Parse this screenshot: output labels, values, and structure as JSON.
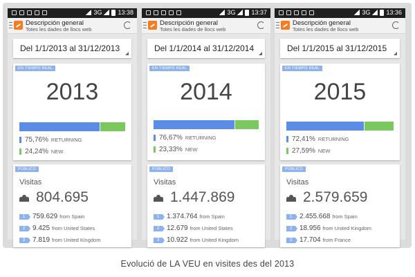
{
  "caption": "Evolució de LA VEU en visites des del 2013",
  "app": {
    "title": "Descripción general",
    "subtitle": "Totes les dades de llocs web"
  },
  "colors": {
    "returning": "#5b8de6",
    "new": "#79c95f",
    "chip": "#8eb2ef",
    "logo": "#f57c1f"
  },
  "screens": [
    {
      "time": "13:38",
      "network": "3G",
      "date_range": "Del 1/1/2013 al 31/12/2013",
      "realtime_chip": "EN TIEMPO REAL",
      "year": "2013",
      "returning_fraction": 0.7576,
      "returning_value": "75,76%",
      "returning_label": "RETURNING",
      "new_value": "24,24%",
      "new_label": "NEW",
      "public_chip": "PÚBLICO",
      "visits_label": "Visitas",
      "visits": "804.695",
      "sources": [
        {
          "rank": "1",
          "value": "759.629",
          "from": "from Spain"
        },
        {
          "rank": "2",
          "value": "9.425",
          "from": "from United States"
        },
        {
          "rank": "3",
          "value": "7.819",
          "from": "from United Kingdom"
        }
      ]
    },
    {
      "time": "13:37",
      "network": "3G",
      "date_range": "Del 1/1/2014 al 31/12/2014",
      "realtime_chip": "EN TIEMPO REAL",
      "year": "2014",
      "returning_fraction": 0.7667,
      "returning_value": "76,67%",
      "returning_label": "RETURNING",
      "new_value": "23,33%",
      "new_label": "NEW",
      "public_chip": "PÚBLICO",
      "visits_label": "Visitas",
      "visits": "1.447.869",
      "sources": [
        {
          "rank": "1",
          "value": "1.374.764",
          "from": "from Spain"
        },
        {
          "rank": "2",
          "value": "12.679",
          "from": "from United States"
        },
        {
          "rank": "3",
          "value": "10.922",
          "from": "from United Kingdom"
        }
      ]
    },
    {
      "time": "13:36",
      "network": "3G",
      "date_range": "Del 1/1/2015 al 31/12/2015",
      "realtime_chip": "EN TIEMPO REAL",
      "year": "2015",
      "returning_fraction": 0.7241,
      "returning_value": "72,41%",
      "returning_label": "RETURNING",
      "new_value": "27,59%",
      "new_label": "NEW",
      "public_chip": "PÚBLICO",
      "visits_label": "Visitas",
      "visits": "2.579.659",
      "sources": [
        {
          "rank": "1",
          "value": "2.455.668",
          "from": "from Spain"
        },
        {
          "rank": "2",
          "value": "18.956",
          "from": "from United Kingdom"
        },
        {
          "rank": "3",
          "value": "17.704",
          "from": "from France"
        }
      ]
    }
  ]
}
